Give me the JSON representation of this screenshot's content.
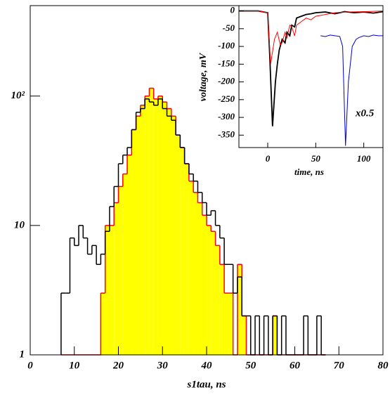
{
  "chart_data": [
    {
      "type": "histogram",
      "x_label": "s1tau, ns",
      "bins": [
        7,
        8,
        9,
        10,
        11,
        12,
        13,
        14,
        15,
        16,
        17,
        18,
        19,
        20,
        21,
        22,
        23,
        24,
        25,
        26,
        27,
        28,
        29,
        30,
        31,
        32,
        33,
        34,
        35,
        36,
        37,
        38,
        39,
        40,
        41,
        42,
        43,
        44,
        45,
        46,
        47,
        48,
        49,
        50,
        51,
        52,
        53,
        54,
        55,
        56,
        57,
        58,
        59,
        60,
        61,
        62,
        63,
        64,
        65,
        66,
        67
      ],
      "series": [
        {
          "color": "#000000",
          "values": [
            3,
            3,
            8,
            7,
            10,
            8,
            6,
            7,
            5,
            6,
            9,
            14,
            20,
            30,
            35,
            40,
            55,
            75,
            80,
            95,
            90,
            85,
            95,
            80,
            70,
            65,
            50,
            40,
            30,
            25,
            22,
            18,
            15,
            12,
            13,
            10,
            8,
            5,
            5,
            3,
            4,
            2,
            2,
            1,
            2,
            1,
            2,
            1,
            2,
            1,
            2,
            1,
            1,
            1,
            1,
            2,
            1,
            1,
            2,
            1
          ]
        },
        {
          "color": "#ff0000",
          "fill": "#ffff00",
          "values": [
            0,
            0,
            0,
            0,
            0,
            0,
            0,
            0,
            0,
            3,
            10,
            10,
            15,
            20,
            25,
            35,
            55,
            70,
            85,
            100,
            115,
            95,
            100,
            90,
            80,
            70,
            50,
            40,
            30,
            22,
            18,
            15,
            12,
            10,
            9,
            7,
            5,
            3,
            3,
            1,
            5,
            2,
            1,
            0,
            0,
            0,
            0,
            0,
            2,
            0,
            0,
            0,
            0,
            0,
            0,
            0,
            0,
            0,
            0,
            0
          ]
        }
      ],
      "xlim": [
        0,
        80
      ],
      "xticks": [
        0,
        10,
        20,
        30,
        40,
        50,
        60,
        70,
        80
      ],
      "ylim": [
        1,
        500
      ],
      "log_y": true,
      "yticks": [
        1,
        10,
        {
          "value": 100,
          "label": "10²"
        }
      ]
    },
    {
      "type": "line",
      "x_label": "time, ns",
      "y_label": "voltage, mV",
      "annotation": "x0.5",
      "xlim": [
        -30,
        120
      ],
      "xticks": [
        0,
        50,
        100
      ],
      "ylim": [
        -385,
        15
      ],
      "yticks": [
        0,
        -50,
        -100,
        -150,
        -200,
        -250,
        -300,
        -350
      ],
      "series": [
        {
          "color": "#000000",
          "x": [
            -30,
            -10,
            0,
            2,
            5,
            8,
            10,
            12,
            15,
            18,
            20,
            23,
            25,
            28,
            30,
            35,
            40,
            45,
            50,
            60,
            70,
            80,
            90,
            100,
            110,
            120
          ],
          "values": [
            0,
            0,
            -5,
            -120,
            -325,
            -200,
            -150,
            -110,
            -80,
            -90,
            -60,
            -70,
            -40,
            -45,
            -20,
            -15,
            -10,
            -8,
            -5,
            -3,
            -8,
            -2,
            -5,
            -3,
            -6,
            -2
          ]
        },
        {
          "color": "#ff0000",
          "x": [
            -30,
            -10,
            0,
            3,
            7,
            10,
            13,
            15,
            18,
            20,
            23,
            25,
            28,
            30,
            35,
            40,
            45,
            50,
            60,
            70,
            80,
            100,
            120
          ],
          "values": [
            0,
            0,
            -5,
            -150,
            -80,
            -60,
            -95,
            -90,
            -60,
            -75,
            -40,
            -45,
            -70,
            -40,
            -30,
            -20,
            -25,
            -15,
            -10,
            -5,
            -3,
            -2,
            0
          ]
        },
        {
          "color": "#0000cc",
          "x": [
            55,
            60,
            65,
            70,
            75,
            78,
            81,
            84,
            88,
            92,
            95,
            100,
            105,
            110,
            115,
            120
          ],
          "values": [
            -70,
            -72,
            -68,
            -70,
            -72,
            -100,
            -380,
            -200,
            -100,
            -80,
            -75,
            -70,
            -72,
            -68,
            -70,
            -70
          ]
        }
      ]
    }
  ]
}
